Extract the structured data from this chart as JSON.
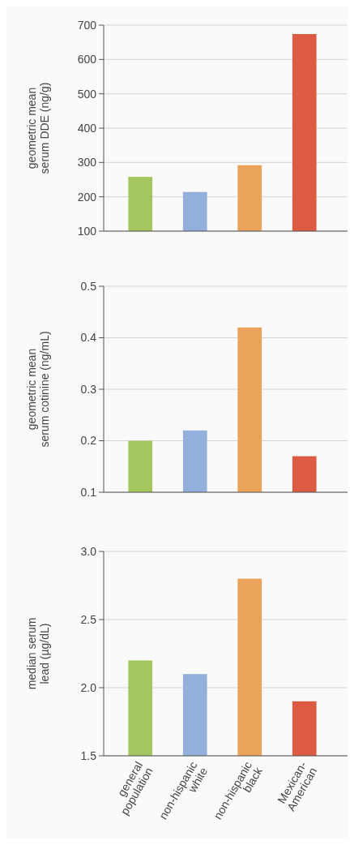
{
  "chart_data": [
    {
      "type": "bar",
      "ylabel": "geometric mean\nserum DDE (ng/g)",
      "categories": [
        null,
        null,
        null,
        null
      ],
      "values": [
        258,
        214,
        292,
        674
      ],
      "colors": [
        "#a5c55e",
        "#93afdc",
        "#e9a45a",
        "#dd5b42"
      ],
      "ylim": [
        100,
        700
      ],
      "yticks": [
        100,
        200,
        300,
        400,
        500,
        600,
        700
      ],
      "grid": "y"
    },
    {
      "type": "bar",
      "ylabel": "geometric mean\nserum cotinine (ng/mL)",
      "categories": [
        null,
        null,
        null,
        null
      ],
      "values": [
        0.2,
        0.22,
        0.42,
        0.17
      ],
      "colors": [
        "#a5c55e",
        "#93afdc",
        "#e9a45a",
        "#dd5b42"
      ],
      "ylim": [
        0.1,
        0.5
      ],
      "yticks": [
        0.1,
        0.2,
        0.3,
        0.4,
        0.5
      ],
      "grid": "y"
    },
    {
      "type": "bar",
      "ylabel": "median serum\nlead (µg/dL)",
      "categories": [
        "general population",
        "non-hispanic white",
        "non-hispanic black",
        "Mexican-American"
      ],
      "values": [
        2.2,
        2.1,
        2.8,
        1.9
      ],
      "colors": [
        "#a5c55e",
        "#93afdc",
        "#e9a45a",
        "#dd5b42"
      ],
      "ylim": [
        1.5,
        3.0
      ],
      "yticks": [
        1.5,
        {
          "value": 2.0,
          "label": "2.0"
        },
        2.5,
        {
          "value": 3.0,
          "label": "3.0"
        }
      ],
      "grid": "y"
    }
  ]
}
